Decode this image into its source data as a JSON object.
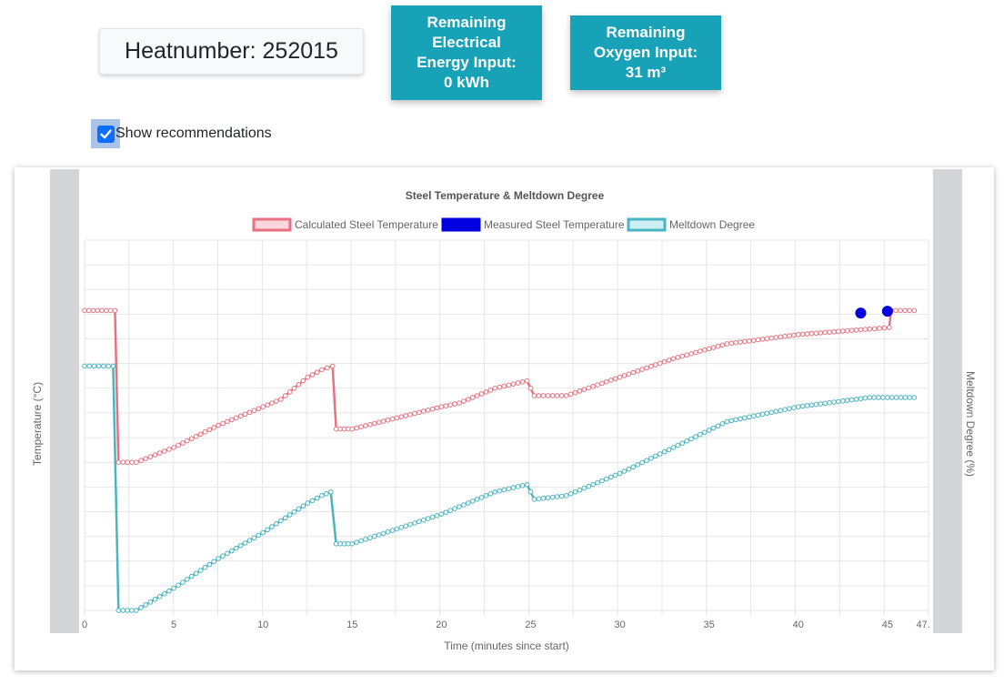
{
  "header": {
    "heatnumber": "Heatnumber: 252015",
    "energy_card": "Remaining\nElectrical\nEnergy Input:\n0 kWh",
    "oxygen_card": "Remaining\nOxygen Input:\n31 m³",
    "show_recommendations_label": "Show recommendations",
    "show_recommendations_checked": true
  },
  "colors": {
    "card": "#17a2b8",
    "calculated": "#e8717f",
    "measured": "#0000e0",
    "meltdown": "#4ab5c2"
  },
  "chart_data": {
    "type": "line",
    "title": "Steel Temperature & Meltdown Degree",
    "xlabel": "Time (minutes since start)",
    "ylabel_left": "Temperature (°C)",
    "ylabel_right": "Meltdown Degree (%)",
    "x_ticks": [
      "0",
      "5",
      "10",
      "15",
      "20",
      "25",
      "30",
      "35",
      "40",
      "45",
      "47."
    ],
    "xlim": [
      0,
      47.3
    ],
    "y_left_range": [
      0,
      100
    ],
    "y_right_range": [
      0,
      100
    ],
    "legend_position": "top",
    "grid": true,
    "legend": [
      "Calculated Steel Temperature",
      "Measured Steel Temperature",
      "Meltdown Degree"
    ],
    "series": [
      {
        "name": "Calculated Steel Temperature",
        "axis": "left",
        "style": "line",
        "points": [
          [
            0,
            81
          ],
          [
            1.7,
            81
          ],
          [
            1.9,
            40
          ],
          [
            2.9,
            40
          ],
          [
            5,
            44
          ],
          [
            7.5,
            50
          ],
          [
            10,
            55
          ],
          [
            11,
            57
          ],
          [
            12.5,
            63
          ],
          [
            13.3,
            65
          ],
          [
            13.9,
            66
          ],
          [
            14.1,
            49
          ],
          [
            15,
            49
          ],
          [
            17.5,
            52
          ],
          [
            20,
            55
          ],
          [
            21,
            56
          ],
          [
            23,
            60
          ],
          [
            24.8,
            62
          ],
          [
            25.2,
            58
          ],
          [
            27,
            58
          ],
          [
            30,
            63
          ],
          [
            33,
            68
          ],
          [
            36,
            72
          ],
          [
            40,
            74.5
          ],
          [
            44,
            76
          ],
          [
            45.1,
            76.4
          ],
          [
            45.2,
            81
          ],
          [
            46.5,
            81
          ]
        ]
      },
      {
        "name": "Measured Steel Temperature",
        "axis": "left",
        "style": "scatter",
        "points": [
          [
            43.5,
            80.3
          ],
          [
            45,
            80.8
          ]
        ]
      },
      {
        "name": "Meltdown Degree",
        "axis": "right",
        "style": "line",
        "points": [
          [
            0,
            66
          ],
          [
            1.6,
            66
          ],
          [
            1.9,
            0
          ],
          [
            2.9,
            0
          ],
          [
            5,
            6
          ],
          [
            7.5,
            14
          ],
          [
            10,
            21
          ],
          [
            12.5,
            29
          ],
          [
            13.3,
            31
          ],
          [
            13.8,
            32
          ],
          [
            14.1,
            18
          ],
          [
            15,
            18
          ],
          [
            17.5,
            22
          ],
          [
            20,
            26
          ],
          [
            21,
            28
          ],
          [
            23,
            32
          ],
          [
            24.8,
            34
          ],
          [
            25.2,
            30
          ],
          [
            27,
            31
          ],
          [
            30,
            37
          ],
          [
            33,
            44
          ],
          [
            36,
            51
          ],
          [
            40,
            55
          ],
          [
            44,
            57.5
          ],
          [
            46.5,
            57.5
          ]
        ]
      }
    ]
  }
}
